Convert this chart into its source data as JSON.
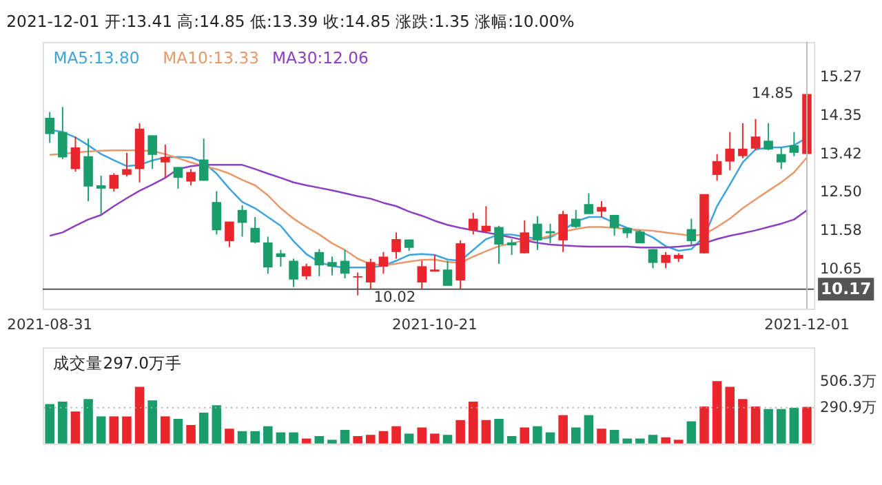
{
  "chart_data": [
    {
      "type": "candlestick",
      "title": "2021-12-01 开:13.41 高:14.85 低:13.39 收:14.85 涨跌:1.35 涨幅:10.00%",
      "categories": [
        "2021-08-31",
        null,
        null,
        null,
        null,
        null,
        null,
        null,
        null,
        null,
        null,
        null,
        null,
        null,
        null,
        null,
        null,
        null,
        null,
        null,
        null,
        null,
        null,
        null,
        null,
        null,
        null,
        null,
        null,
        null,
        "2021-10-21",
        null,
        null,
        null,
        null,
        null,
        null,
        null,
        null,
        null,
        null,
        null,
        null,
        null,
        null,
        null,
        null,
        null,
        null,
        null,
        null,
        null,
        null,
        null,
        null,
        null,
        null,
        null,
        null,
        "2021-12-01"
      ],
      "ohlc": [
        [
          14.28,
          14.42,
          13.68,
          13.89
        ],
        [
          13.94,
          14.54,
          13.29,
          13.33
        ],
        [
          13.05,
          13.83,
          12.99,
          13.57
        ],
        [
          13.36,
          13.78,
          12.28,
          12.63
        ],
        [
          12.66,
          12.89,
          11.97,
          12.58
        ],
        [
          12.58,
          12.95,
          12.51,
          12.91
        ],
        [
          12.91,
          13.44,
          12.87,
          13.05
        ],
        [
          13.05,
          14.15,
          12.73,
          14.02
        ],
        [
          13.86,
          13.86,
          13.05,
          13.39
        ],
        [
          13.21,
          13.64,
          12.84,
          13.34
        ],
        [
          13.1,
          13.1,
          12.58,
          12.84
        ],
        [
          12.75,
          13.05,
          12.66,
          12.98
        ],
        [
          13.28,
          13.78,
          12.77,
          12.77
        ],
        [
          12.26,
          12.52,
          11.48,
          11.58
        ],
        [
          11.32,
          11.79,
          11.18,
          11.79
        ],
        [
          12.07,
          12.18,
          11.43,
          11.76
        ],
        [
          11.64,
          11.9,
          11.27,
          11.29
        ],
        [
          11.29,
          11.43,
          10.54,
          10.69
        ],
        [
          11.03,
          11.11,
          10.71,
          10.94
        ],
        [
          10.85,
          10.9,
          10.22,
          10.4
        ],
        [
          10.48,
          10.78,
          10.4,
          10.72
        ],
        [
          11.06,
          11.13,
          10.48,
          10.74
        ],
        [
          10.82,
          10.95,
          10.5,
          10.71
        ],
        [
          10.85,
          11.11,
          10.43,
          10.54
        ],
        [
          10.45,
          10.57,
          10.02,
          10.48
        ],
        [
          10.33,
          10.9,
          10.17,
          10.82
        ],
        [
          10.71,
          11.06,
          10.54,
          10.95
        ],
        [
          11.06,
          11.53,
          10.9,
          11.37
        ],
        [
          11.36,
          11.36,
          11.09,
          11.16
        ],
        [
          10.33,
          10.85,
          10.17,
          10.72
        ],
        [
          10.59,
          10.99,
          10.59,
          10.64
        ],
        [
          10.64,
          10.85,
          10.25,
          10.25
        ],
        [
          10.38,
          11.34,
          10.17,
          11.27
        ],
        [
          11.58,
          12.0,
          11.48,
          11.86
        ],
        [
          11.55,
          12.16,
          11.53,
          11.69
        ],
        [
          11.66,
          11.69,
          10.78,
          11.24
        ],
        [
          11.29,
          11.37,
          10.99,
          11.22
        ],
        [
          11.03,
          11.82,
          11.03,
          11.53
        ],
        [
          11.74,
          11.92,
          11.11,
          11.34
        ],
        [
          11.56,
          11.74,
          11.27,
          11.51
        ],
        [
          11.34,
          12.05,
          11.06,
          11.97
        ],
        [
          11.86,
          12.07,
          11.64,
          11.66
        ],
        [
          12.21,
          12.47,
          11.97,
          11.97
        ],
        [
          12.03,
          12.28,
          11.9,
          12.14
        ],
        [
          11.95,
          11.95,
          11.45,
          11.64
        ],
        [
          11.64,
          11.64,
          11.4,
          11.51
        ],
        [
          11.55,
          11.58,
          11.27,
          11.27
        ],
        [
          11.13,
          11.13,
          10.67,
          10.8
        ],
        [
          10.8,
          11.06,
          10.67,
          10.99
        ],
        [
          10.9,
          11.03,
          10.82,
          10.99
        ],
        [
          11.61,
          11.86,
          11.22,
          11.32
        ],
        [
          11.03,
          12.45,
          11.03,
          12.45
        ],
        [
          12.91,
          13.41,
          12.77,
          13.24
        ],
        [
          13.23,
          13.94,
          13.02,
          13.54
        ],
        [
          13.36,
          14.15,
          13.31,
          13.54
        ],
        [
          13.54,
          14.25,
          13.5,
          13.83
        ],
        [
          13.73,
          14.15,
          13.5,
          13.52
        ],
        [
          13.41,
          13.57,
          13.05,
          13.21
        ],
        [
          13.62,
          13.94,
          13.36,
          13.44
        ],
        [
          13.41,
          14.85,
          13.39,
          14.85
        ]
      ],
      "colors": [
        "#1a9c6c",
        "#1a9c6c",
        "#e8262c",
        "#1a9c6c",
        "#1a9c6c",
        "#e8262c",
        "#e8262c",
        "#e8262c",
        "#1a9c6c",
        "#e8262c",
        "#1a9c6c",
        "#e8262c",
        "#1a9c6c",
        "#1a9c6c",
        "#e8262c",
        "#1a9c6c",
        "#1a9c6c",
        "#1a9c6c",
        "#1a9c6c",
        "#1a9c6c",
        "#e8262c",
        "#1a9c6c",
        "#1a9c6c",
        "#1a9c6c",
        "#e8262c",
        "#e8262c",
        "#e8262c",
        "#e8262c",
        "#1a9c6c",
        "#e8262c",
        "#e8262c",
        "#1a9c6c",
        "#e8262c",
        "#e8262c",
        "#e8262c",
        "#1a9c6c",
        "#1a9c6c",
        "#e8262c",
        "#1a9c6c",
        "#1a9c6c",
        "#e8262c",
        "#1a9c6c",
        "#1a9c6c",
        "#e8262c",
        "#1a9c6c",
        "#1a9c6c",
        "#1a9c6c",
        "#1a9c6c",
        "#e8262c",
        "#e8262c",
        "#1a9c6c",
        "#e8262c",
        "#e8262c",
        "#e8262c",
        "#e8262c",
        "#e8262c",
        "#1a9c6c",
        "#1a9c6c",
        "#1a9c6c",
        "#e8262c"
      ],
      "series": [
        {
          "type": "line",
          "name": "MA5:13.80",
          "color": "#3fa4dc",
          "values": [
            13.99,
            13.94,
            13.81,
            13.62,
            13.41,
            13.26,
            13.12,
            13.15,
            13.26,
            13.33,
            13.34,
            13.33,
            13.21,
            12.94,
            12.58,
            12.26,
            12.11,
            11.9,
            11.69,
            11.32,
            11.01,
            10.82,
            10.72,
            10.69,
            10.69,
            10.69,
            10.73,
            10.85,
            10.99,
            11.01,
            10.99,
            10.88,
            10.85,
            11.11,
            11.37,
            11.48,
            11.48,
            11.43,
            11.37,
            11.41,
            11.58,
            11.79,
            11.9,
            11.9,
            11.76,
            11.64,
            11.55,
            11.41,
            11.2,
            11.09,
            11.13,
            11.43,
            12.16,
            12.68,
            13.21,
            13.52,
            13.57,
            13.57,
            13.62,
            13.8
          ]
        },
        {
          "type": "line",
          "name": "MA10:13.33",
          "color": "#e8996b",
          "values": [
            13.39,
            13.41,
            13.45,
            13.47,
            13.49,
            13.5,
            13.5,
            13.5,
            13.48,
            13.41,
            13.31,
            13.21,
            13.12,
            13.05,
            12.94,
            12.79,
            12.66,
            12.42,
            12.11,
            11.86,
            11.66,
            11.48,
            11.27,
            11.11,
            10.9,
            10.77,
            10.74,
            10.78,
            10.83,
            10.87,
            10.88,
            10.82,
            10.8,
            10.95,
            11.08,
            11.2,
            11.27,
            11.34,
            11.37,
            11.45,
            11.55,
            11.61,
            11.66,
            11.66,
            11.64,
            11.61,
            11.59,
            11.57,
            11.53,
            11.49,
            11.45,
            11.48,
            11.66,
            11.86,
            12.11,
            12.32,
            12.53,
            12.73,
            12.97,
            13.33
          ]
        },
        {
          "type": "line",
          "name": "MA30:12.06",
          "color": "#8c3fbf",
          "values": [
            11.45,
            11.53,
            11.69,
            11.84,
            11.95,
            12.16,
            12.35,
            12.53,
            12.68,
            12.84,
            13.05,
            13.12,
            13.15,
            13.15,
            13.15,
            13.15,
            13.05,
            12.94,
            12.84,
            12.73,
            12.66,
            12.6,
            12.54,
            12.47,
            12.4,
            12.34,
            12.24,
            12.16,
            12.03,
            11.93,
            11.81,
            11.71,
            11.64,
            11.58,
            11.53,
            11.47,
            11.41,
            11.34,
            11.28,
            11.24,
            11.22,
            11.2,
            11.19,
            11.19,
            11.19,
            11.19,
            11.17,
            11.17,
            11.17,
            11.19,
            11.22,
            11.27,
            11.37,
            11.45,
            11.51,
            11.58,
            11.66,
            11.74,
            11.84,
            12.06
          ]
        }
      ],
      "ylim": [
        9.7,
        16.1
      ],
      "yticks": [
        15.27,
        14.35,
        13.42,
        {
          "value": 12.5,
          "label": "12.50"
        },
        11.58,
        10.65
      ],
      "ref_lines": [
        {
          "axis": "y",
          "value": 10.17,
          "label": "10.17",
          "color": "#555555"
        },
        {
          "axis": "x",
          "value": "2021-12-01",
          "color": "#bbbbbb"
        }
      ],
      "annotations": [
        {
          "text": "14.85",
          "x": "2021-12-01",
          "y": 14.85
        },
        "10.02"
      ],
      "legend": "top left"
    },
    {
      "type": "bar",
      "title": "成交量297.0万手",
      "categories": [
        null,
        null,
        null,
        null,
        null,
        null,
        null,
        null,
        null,
        null,
        null,
        null,
        null,
        null,
        null,
        null,
        null,
        null,
        null,
        null,
        null,
        null,
        null,
        null,
        null,
        null,
        null,
        null,
        null,
        null,
        null,
        null,
        null,
        null,
        null,
        null,
        null,
        null,
        null,
        null,
        null,
        null,
        null,
        null,
        null,
        null,
        null,
        null,
        null,
        null,
        null,
        null,
        null,
        null,
        null,
        null,
        null,
        null,
        null,
        null
      ],
      "values": [
        320,
        340,
        260,
        360,
        220,
        220,
        220,
        460,
        350,
        220,
        200,
        150,
        250,
        310,
        120,
        100,
        100,
        140,
        90,
        90,
        40,
        60,
        30,
        110,
        60,
        70,
        100,
        140,
        80,
        130,
        80,
        70,
        190,
        340,
        190,
        200,
        60,
        130,
        140,
        90,
        230,
        130,
        230,
        120,
        110,
        40,
        40,
        70,
        50,
        30,
        180,
        300,
        506.3,
        460,
        360,
        300,
        280,
        280,
        290,
        297.0
      ],
      "colors": [
        "#1a9c6c",
        "#1a9c6c",
        "#e8262c",
        "#1a9c6c",
        "#1a9c6c",
        "#e8262c",
        "#e8262c",
        "#e8262c",
        "#1a9c6c",
        "#e8262c",
        "#1a9c6c",
        "#e8262c",
        "#1a9c6c",
        "#1a9c6c",
        "#e8262c",
        "#1a9c6c",
        "#1a9c6c",
        "#1a9c6c",
        "#1a9c6c",
        "#1a9c6c",
        "#e8262c",
        "#1a9c6c",
        "#1a9c6c",
        "#1a9c6c",
        "#e8262c",
        "#e8262c",
        "#e8262c",
        "#e8262c",
        "#1a9c6c",
        "#e8262c",
        "#e8262c",
        "#1a9c6c",
        "#e8262c",
        "#e8262c",
        "#e8262c",
        "#1a9c6c",
        "#1a9c6c",
        "#e8262c",
        "#1a9c6c",
        "#1a9c6c",
        "#e8262c",
        "#1a9c6c",
        "#1a9c6c",
        "#e8262c",
        "#1a9c6c",
        "#1a9c6c",
        "#1a9c6c",
        "#1a9c6c",
        "#e8262c",
        "#e8262c",
        "#1a9c6c",
        "#e8262c",
        "#e8262c",
        "#e8262c",
        "#e8262c",
        "#e8262c",
        "#1a9c6c",
        "#1a9c6c",
        "#1a9c6c",
        "#e8262c"
      ],
      "ylim": [
        0,
        780
      ],
      "yticks": [
        {
          "value": 506.3,
          "label": "506.3万"
        },
        {
          "value": 290.9,
          "label": "290.9万"
        }
      ],
      "ref_lines": [
        {
          "axis": "y",
          "value": 290.9,
          "color": "#aaaaaa",
          "line_style": "dotted"
        }
      ],
      "tick_labels": "y"
    }
  ]
}
